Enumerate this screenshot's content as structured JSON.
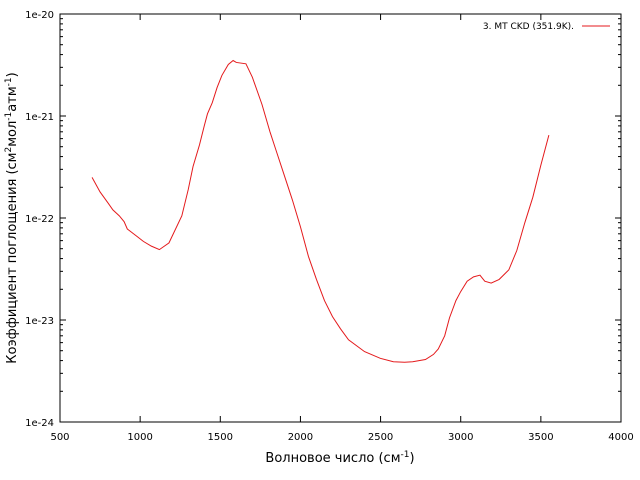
{
  "chart_data": {
    "type": "line",
    "xlabel": "Волновое число (см",
    "xlabel_sup": "-1",
    "xlabel_end": ")",
    "ylabel_parts": [
      "Коэффициент поглощения (см",
      "2",
      "мол",
      "-1",
      "атм",
      "-1",
      ")"
    ],
    "xlim": [
      500,
      4000
    ],
    "ylim": [
      1e-24,
      1e-20
    ],
    "yscale": "log",
    "x_ticks": [
      500,
      1000,
      1500,
      2000,
      2500,
      3000,
      3500,
      4000
    ],
    "x_tick_labels": [
      "500",
      "1000",
      "1500",
      "2000",
      "2500",
      "3000",
      "3500",
      "4000"
    ],
    "y_ticks": [
      1e-24,
      1e-23,
      1e-22,
      1e-21,
      1e-20
    ],
    "y_tick_labels": [
      "1e-24",
      "1e-23",
      "1e-22",
      "1e-21",
      "1e-20"
    ],
    "grid": false,
    "legend_position": "top-right",
    "series": [
      {
        "name": "3. MT CKD (351.9K).",
        "color": "#e41a1c",
        "points": [
          [
            700,
            2.5e-22
          ],
          [
            750,
            1.8e-22
          ],
          [
            800,
            1.4e-22
          ],
          [
            830,
            1.2e-22
          ],
          [
            870,
            1.05e-22
          ],
          [
            900,
            9.2e-23
          ],
          [
            920,
            7.8e-23
          ],
          [
            980,
            6.6e-23
          ],
          [
            1020,
            5.9e-23
          ],
          [
            1070,
            5.3e-23
          ],
          [
            1120,
            4.9e-23
          ],
          [
            1180,
            5.7e-23
          ],
          [
            1260,
            1.05e-22
          ],
          [
            1300,
            1.9e-22
          ],
          [
            1330,
            3.2e-22
          ],
          [
            1370,
            5.2e-22
          ],
          [
            1400,
            8e-22
          ],
          [
            1420,
            1.05e-21
          ],
          [
            1450,
            1.35e-21
          ],
          [
            1480,
            1.9e-21
          ],
          [
            1510,
            2.5e-21
          ],
          [
            1550,
            3.2e-21
          ],
          [
            1580,
            3.5e-21
          ],
          [
            1600,
            3.35e-21
          ],
          [
            1660,
            3.25e-21
          ],
          [
            1700,
            2.4e-21
          ],
          [
            1760,
            1.3e-21
          ],
          [
            1810,
            7e-22
          ],
          [
            1850,
            4.5e-22
          ],
          [
            1900,
            2.6e-22
          ],
          [
            1950,
            1.5e-22
          ],
          [
            2000,
            8.2e-23
          ],
          [
            2050,
            4.2e-23
          ],
          [
            2100,
            2.5e-23
          ],
          [
            2150,
            1.55e-23
          ],
          [
            2200,
            1.08e-23
          ],
          [
            2250,
            8.2e-24
          ],
          [
            2300,
            6.4e-24
          ],
          [
            2400,
            4.9e-24
          ],
          [
            2500,
            4.2e-24
          ],
          [
            2580,
            3.9e-24
          ],
          [
            2650,
            3.85e-24
          ],
          [
            2700,
            3.9e-24
          ],
          [
            2780,
            4.1e-24
          ],
          [
            2830,
            4.6e-24
          ],
          [
            2860,
            5.2e-24
          ],
          [
            2900,
            7e-24
          ],
          [
            2930,
            1.05e-23
          ],
          [
            2970,
            1.55e-23
          ],
          [
            3000,
            1.9e-23
          ],
          [
            3040,
            2.4e-23
          ],
          [
            3080,
            2.65e-23
          ],
          [
            3120,
            2.75e-23
          ],
          [
            3150,
            2.4e-23
          ],
          [
            3190,
            2.3e-23
          ],
          [
            3240,
            2.5e-23
          ],
          [
            3300,
            3.1e-23
          ],
          [
            3350,
            4.8e-23
          ],
          [
            3400,
            9e-23
          ],
          [
            3450,
            1.6e-22
          ],
          [
            3500,
            3.3e-22
          ],
          [
            3550,
            6.5e-22
          ]
        ]
      }
    ]
  }
}
